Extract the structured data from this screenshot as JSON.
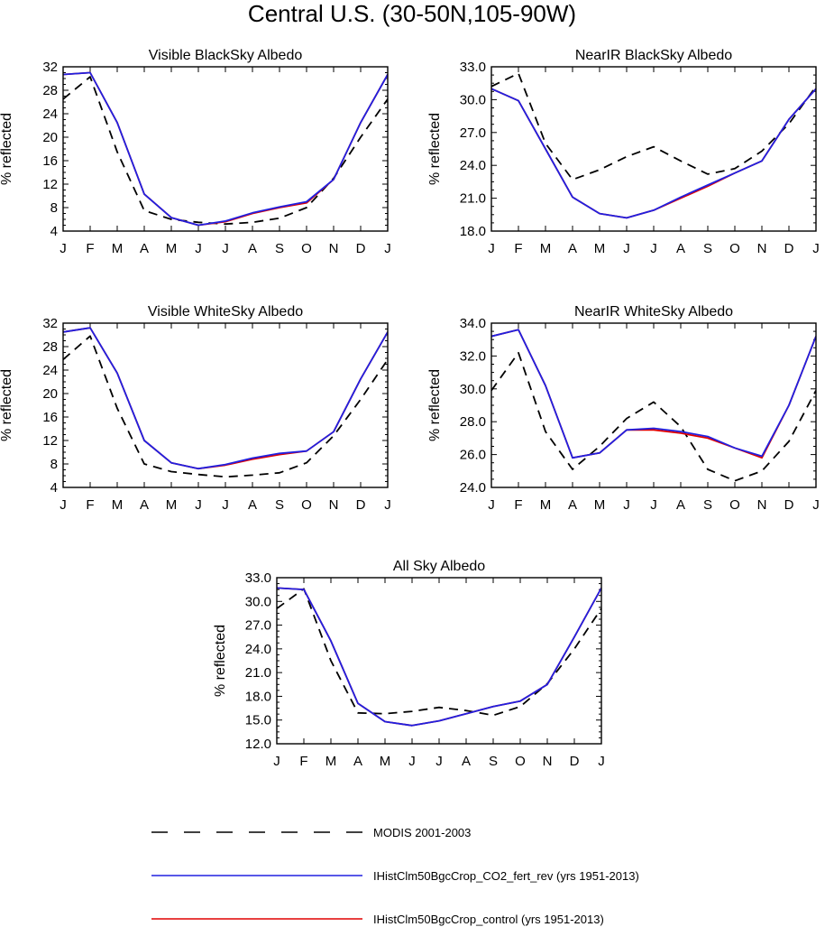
{
  "figure_title": "Central U.S. (30-50N,105-90W)",
  "months": [
    "J",
    "F",
    "M",
    "A",
    "M",
    "J",
    "J",
    "A",
    "S",
    "O",
    "N",
    "D",
    "J"
  ],
  "legend": {
    "items": [
      {
        "label": "MODIS 2001-2003",
        "color": "#000000",
        "dash": true
      },
      {
        "label": "IHistClm50BgcCrop_CO2_fert_rev (yrs 1951-2013)",
        "color": "#2020e0",
        "dash": false
      },
      {
        "label": "IHistClm50BgcCrop_control (yrs 1951-2013)",
        "color": "#e00000",
        "dash": false
      }
    ]
  },
  "colors": {
    "modis": "#000000",
    "co2_fert_rev": "#2020e0",
    "control": "#e00000"
  },
  "chart_data": [
    {
      "type": "line",
      "title": "Visible BlackSky Albedo",
      "ylabel": "% reflected",
      "ylim": [
        4,
        32
      ],
      "yticks": [
        "4",
        "8",
        "12",
        "16",
        "20",
        "24",
        "28",
        "32"
      ],
      "series": [
        {
          "name": "MODIS 2001-2003",
          "values": [
            26.5,
            30.3,
            17.5,
            7.5,
            6.0,
            5.5,
            5.2,
            5.5,
            6.2,
            8.0,
            13.0,
            20.0,
            26.5
          ]
        },
        {
          "name": "IHistClm50BgcCrop_control (yrs 1951-2013)",
          "values": [
            30.7,
            31.0,
            22.5,
            10.3,
            6.3,
            5.0,
            5.6,
            7.0,
            8.0,
            8.8,
            12.8,
            22.5,
            30.7
          ]
        },
        {
          "name": "IHistClm50BgcCrop_CO2_fert_rev (yrs 1951-2013)",
          "values": [
            30.7,
            31.0,
            22.5,
            10.3,
            6.3,
            5.0,
            5.7,
            7.1,
            8.1,
            9.0,
            12.8,
            22.5,
            30.7
          ]
        }
      ]
    },
    {
      "type": "line",
      "title": "NearIR BlackSky Albedo",
      "ylabel": "% reflected",
      "ylim": [
        18,
        33
      ],
      "yticks": [
        "18.0",
        "21.0",
        "24.0",
        "27.0",
        "30.0",
        "33.0"
      ],
      "series": [
        {
          "name": "MODIS 2001-2003",
          "values": [
            31.2,
            32.4,
            26.0,
            22.7,
            23.6,
            24.8,
            25.7,
            24.4,
            23.2,
            23.7,
            25.3,
            27.8,
            31.2
          ]
        },
        {
          "name": "IHistClm50BgcCrop_control (yrs 1951-2013)",
          "values": [
            31.0,
            29.9,
            25.5,
            21.1,
            19.6,
            19.2,
            19.9,
            21.0,
            22.1,
            23.3,
            24.4,
            28.2,
            31.0
          ]
        },
        {
          "name": "IHistClm50BgcCrop_CO2_fert_rev (yrs 1951-2013)",
          "values": [
            31.0,
            29.9,
            25.5,
            21.1,
            19.6,
            19.2,
            19.9,
            21.1,
            22.2,
            23.3,
            24.4,
            28.2,
            31.0
          ]
        }
      ]
    },
    {
      "type": "line",
      "title": "Visible WhiteSky Albedo",
      "ylabel": "% reflected",
      "ylim": [
        4,
        32
      ],
      "yticks": [
        "4",
        "8",
        "12",
        "16",
        "20",
        "24",
        "28",
        "32"
      ],
      "series": [
        {
          "name": "MODIS 2001-2003",
          "values": [
            25.8,
            29.8,
            17.5,
            8.0,
            6.7,
            6.2,
            5.8,
            6.1,
            6.5,
            8.2,
            12.8,
            19.0,
            25.8
          ]
        },
        {
          "name": "IHistClm50BgcCrop_control (yrs 1951-2013)",
          "values": [
            30.5,
            31.2,
            23.5,
            12.0,
            8.2,
            7.2,
            7.8,
            8.8,
            9.6,
            10.2,
            13.5,
            22.5,
            30.5
          ]
        },
        {
          "name": "IHistClm50BgcCrop_CO2_fert_rev (yrs 1951-2013)",
          "values": [
            30.5,
            31.2,
            23.5,
            12.0,
            8.2,
            7.2,
            7.9,
            9.0,
            9.8,
            10.2,
            13.5,
            22.5,
            30.5
          ]
        }
      ]
    },
    {
      "type": "line",
      "title": "NearIR WhiteSky Albedo",
      "ylabel": "% reflected",
      "ylim": [
        24,
        34
      ],
      "yticks": [
        "24.0",
        "26.0",
        "28.0",
        "30.0",
        "32.0",
        "34.0"
      ],
      "series": [
        {
          "name": "MODIS 2001-2003",
          "values": [
            29.9,
            32.2,
            27.4,
            25.1,
            26.5,
            28.2,
            29.2,
            27.7,
            25.1,
            24.4,
            25.0,
            26.8,
            29.9
          ]
        },
        {
          "name": "IHistClm50BgcCrop_control (yrs 1951-2013)",
          "values": [
            33.2,
            33.6,
            30.2,
            25.8,
            26.1,
            27.5,
            27.5,
            27.3,
            27.0,
            26.4,
            25.8,
            29.0,
            33.2
          ]
        },
        {
          "name": "IHistClm50BgcCrop_CO2_fert_rev (yrs 1951-2013)",
          "values": [
            33.2,
            33.6,
            30.2,
            25.8,
            26.1,
            27.5,
            27.6,
            27.4,
            27.1,
            26.4,
            25.9,
            29.0,
            33.2
          ]
        }
      ]
    },
    {
      "type": "line",
      "title": "All Sky Albedo",
      "ylabel": "% reflected",
      "ylim": [
        12,
        33
      ],
      "yticks": [
        "12.0",
        "15.0",
        "18.0",
        "21.0",
        "24.0",
        "27.0",
        "30.0",
        "33.0"
      ],
      "series": [
        {
          "name": "MODIS 2001-2003",
          "values": [
            29.1,
            31.6,
            22.5,
            15.9,
            15.8,
            16.1,
            16.6,
            16.2,
            15.6,
            16.7,
            19.6,
            24.0,
            29.1
          ]
        },
        {
          "name": "IHistClm50BgcCrop_control (yrs 1951-2013)",
          "values": [
            31.7,
            31.5,
            25.0,
            17.1,
            14.8,
            14.3,
            14.9,
            15.8,
            16.7,
            17.4,
            19.5,
            25.5,
            31.7
          ]
        },
        {
          "name": "IHistClm50BgcCrop_CO2_fert_rev (yrs 1951-2013)",
          "values": [
            31.7,
            31.5,
            25.0,
            17.1,
            14.8,
            14.3,
            14.9,
            15.8,
            16.7,
            17.4,
            19.5,
            25.5,
            31.7
          ]
        }
      ]
    }
  ]
}
